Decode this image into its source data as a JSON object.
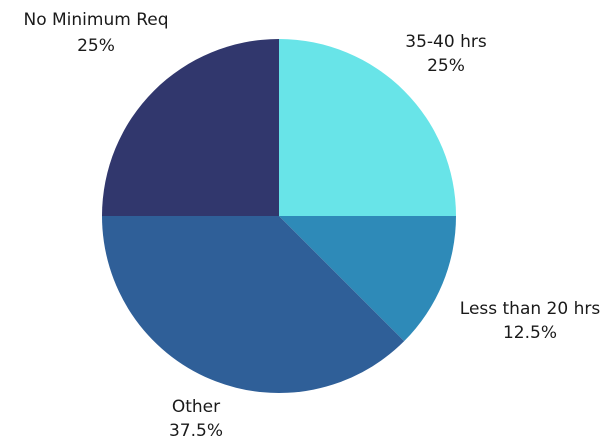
{
  "chart_data": {
    "type": "pie",
    "slices": [
      {
        "label": "35-40 hrs",
        "value_label": "25%",
        "value": 25,
        "color": "#68e4e8"
      },
      {
        "label": "Less than 20 hrs",
        "value_label": "12.5%",
        "value": 12.5,
        "color": "#2e8ab8"
      },
      {
        "label": "Other",
        "value_label": "37.5%",
        "value": 37.5,
        "color": "#2f5f98"
      },
      {
        "label": "No Minimum Req",
        "value_label": "25%",
        "value": 25,
        "color": "#31376d"
      }
    ]
  }
}
